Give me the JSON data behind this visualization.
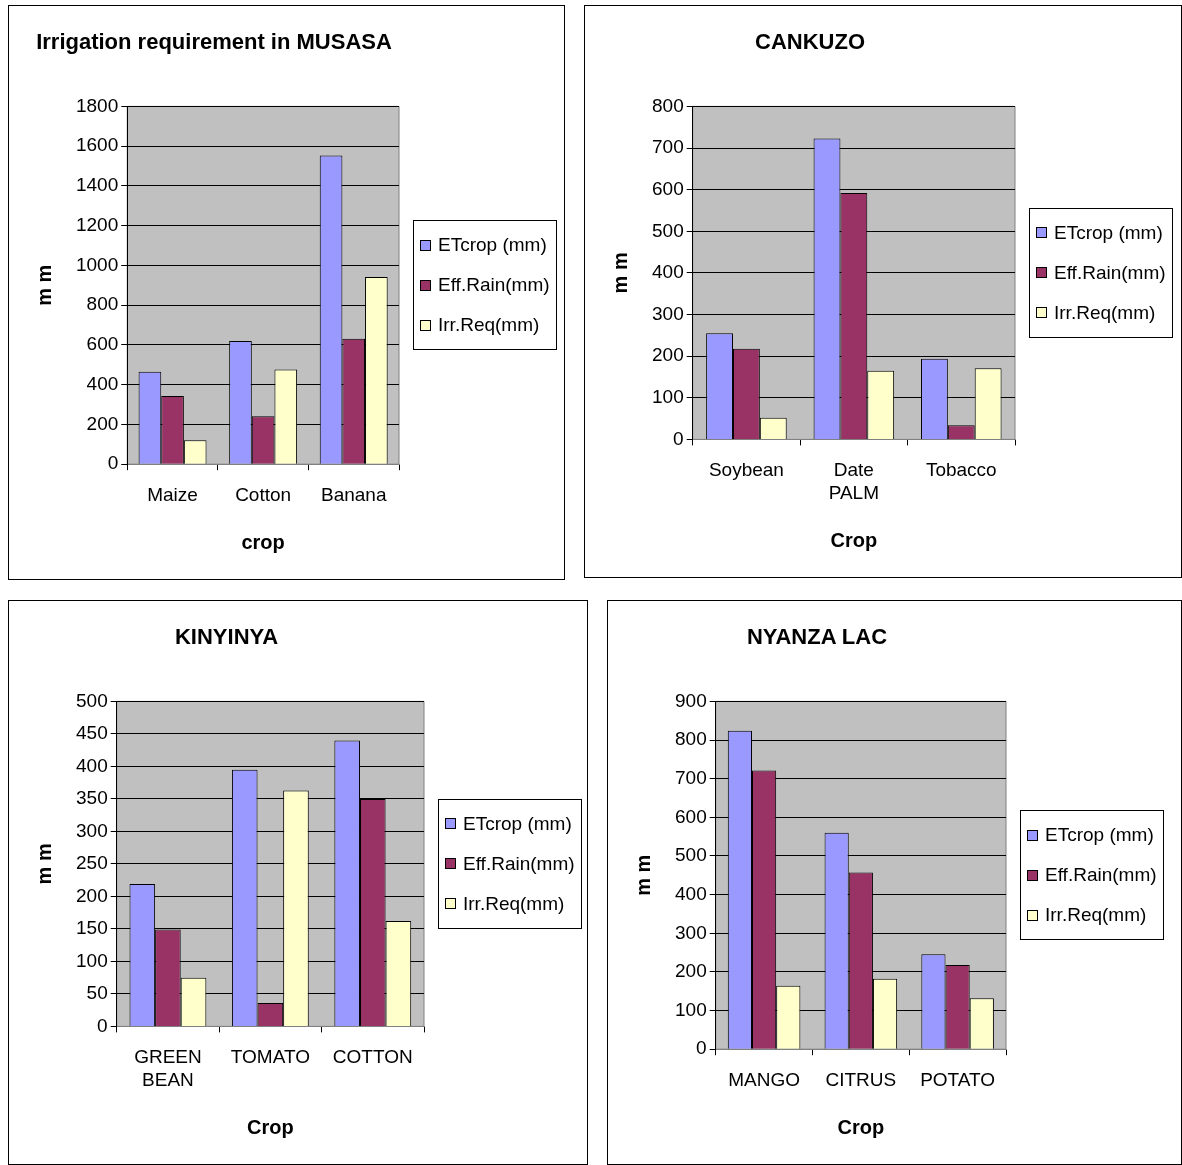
{
  "chart_data": [
    {
      "type": "bar",
      "title": "Irrigation requirement in MUSASA",
      "xlabel": "crop",
      "ylabel": "m m",
      "categories": [
        "Maize",
        "Cotton",
        "Banana"
      ],
      "series": [
        {
          "name": "ETcrop (mm)",
          "color": "#9999ff",
          "values": [
            465,
            620,
            1553
          ]
        },
        {
          "name": "Eff.Rain(mm)",
          "color": "#993366",
          "values": [
            343,
            241,
            631
          ]
        },
        {
          "name": "Irr.Req(mm)",
          "color": "#ffffcc",
          "values": [
            120,
            477,
            942
          ]
        }
      ],
      "ylim": [
        0,
        1800
      ],
      "yticks": [
        0,
        200,
        400,
        600,
        800,
        1000,
        1200,
        1400,
        1600,
        1800
      ],
      "grid": "y",
      "legend": "right"
    },
    {
      "type": "bar",
      "title": "CANKUZO",
      "xlabel": "Crop",
      "ylabel": "m m",
      "categories": [
        "Soybean",
        "Date PALM",
        "Tobacco"
      ],
      "series": [
        {
          "name": "ETcrop (mm)",
          "color": "#9999ff",
          "values": [
            255,
            723,
            194
          ]
        },
        {
          "name": "Eff.Rain(mm)",
          "color": "#993366",
          "values": [
            218,
            592,
            34
          ]
        },
        {
          "name": "Irr.Req(mm)",
          "color": "#ffffcc",
          "values": [
            52,
            165,
            171
          ]
        }
      ],
      "ylim": [
        0,
        800
      ],
      "yticks": [
        0,
        100,
        200,
        300,
        400,
        500,
        600,
        700,
        800
      ],
      "grid": "y",
      "legend": "right"
    },
    {
      "type": "bar",
      "title": "KINYINYA",
      "xlabel": "Crop",
      "ylabel": "m m",
      "categories": [
        "GREEN BEAN",
        "TOMATO",
        "COTTON"
      ],
      "series": [
        {
          "name": "ETcrop (mm)",
          "color": "#9999ff",
          "values": [
            219,
            395,
            440
          ]
        },
        {
          "name": "Eff.Rain(mm)",
          "color": "#993366",
          "values": [
            149,
            36,
            350
          ]
        },
        {
          "name": "Irr.Req(mm)",
          "color": "#ffffcc",
          "values": [
            75,
            363,
            162
          ]
        }
      ],
      "ylim": [
        0,
        500
      ],
      "yticks": [
        0,
        50,
        100,
        150,
        200,
        250,
        300,
        350,
        400,
        450,
        500
      ],
      "grid": "y",
      "legend": "right"
    },
    {
      "type": "bar",
      "title": "NYANZA LAC",
      "xlabel": "Crop",
      "ylabel": "m m",
      "categories": [
        "MANGO",
        "CITRUS",
        "POTATO"
      ],
      "series": [
        {
          "name": "ETcrop (mm)",
          "color": "#9999ff",
          "values": [
            824,
            560,
            246
          ]
        },
        {
          "name": "Eff.Rain(mm)",
          "color": "#993366",
          "values": [
            721,
            457,
            218
          ]
        },
        {
          "name": "Irr.Req(mm)",
          "color": "#ffffcc",
          "values": [
            164,
            182,
            132
          ]
        }
      ],
      "ylim": [
        0,
        900
      ],
      "yticks": [
        0,
        100,
        200,
        300,
        400,
        500,
        600,
        700,
        800,
        900
      ],
      "grid": "y",
      "legend": "right"
    }
  ]
}
